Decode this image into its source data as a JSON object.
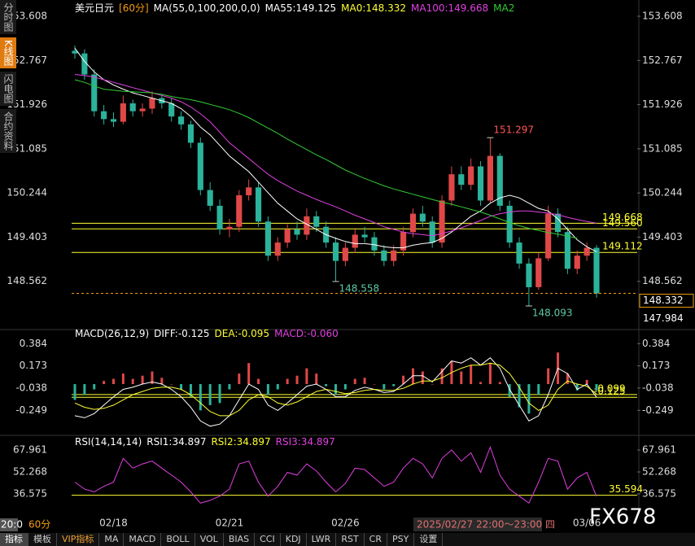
{
  "sidebar": [
    "分时图",
    "K线图",
    "闪电图",
    "合约资料"
  ],
  "clock": "20:0",
  "period": "60分",
  "crosshair_time": "2025/02/27 22:00～23:00 四",
  "watermark": "FX678",
  "toolbar": [
    "指标",
    "模板",
    "VIP指标",
    "MA",
    "MACD",
    "BOLL",
    "VOL",
    "BIAS",
    "CCI",
    "KDJ",
    "LWR",
    "RST",
    "CR",
    "PSY",
    "设置"
  ],
  "chart_data": [
    {
      "type": "candlestick",
      "legend": [
        {
          "text": "美元日元",
          "color": "#ffffff"
        },
        {
          "text": "[60分]",
          "color": "#f39c12"
        },
        {
          "text": "MA(55,0,100,200,0,0)",
          "color": "#ffffff"
        },
        {
          "text": "MA55:149.125",
          "color": "#ffffff"
        },
        {
          "text": "MA0:148.332",
          "color": "#ffff33"
        },
        {
          "text": "MA100:149.668",
          "color": "#e040e0"
        },
        {
          "text": "MA2",
          "color": "#33cc33"
        }
      ],
      "categories": [
        null,
        null,
        null,
        null,
        "02/18",
        null,
        null,
        null,
        null,
        null,
        null,
        null,
        null,
        null,
        null,
        null,
        "02/21",
        null,
        null,
        null,
        null,
        null,
        null,
        null,
        null,
        null,
        null,
        null,
        "02/26",
        null,
        null,
        null,
        null,
        null,
        null,
        null,
        null,
        null,
        null,
        null,
        null,
        null,
        null,
        null,
        null,
        null,
        null,
        null,
        null,
        null,
        null,
        null,
        null,
        "03/06",
        null
      ],
      "open": [
        152.95,
        152.9,
        152.5,
        151.8,
        151.65,
        151.6,
        151.95,
        151.8,
        151.85,
        152.05,
        151.95,
        151.7,
        151.55,
        151.2,
        150.3,
        150.0,
        149.55,
        149.6,
        150.2,
        150.35,
        149.7,
        149.05,
        149.3,
        149.55,
        149.45,
        149.8,
        149.6,
        149.3,
        148.95,
        149.2,
        149.45,
        149.4,
        149.15,
        148.95,
        149.15,
        149.5,
        149.85,
        149.7,
        149.3,
        150.1,
        150.6,
        150.4,
        150.75,
        150.1,
        150.95,
        150.0,
        149.3,
        148.9,
        148.45,
        149.0,
        149.85,
        149.5,
        148.8,
        149.05,
        149.2
      ],
      "high": [
        153.05,
        152.98,
        152.6,
        151.92,
        151.78,
        152.1,
        152.02,
        151.95,
        152.18,
        152.12,
        152.05,
        151.8,
        151.62,
        151.3,
        150.45,
        150.12,
        149.75,
        150.3,
        150.5,
        150.45,
        149.8,
        149.4,
        149.65,
        149.7,
        149.95,
        149.9,
        149.7,
        149.4,
        149.3,
        149.55,
        149.6,
        149.5,
        149.25,
        149.25,
        149.6,
        149.95,
        150.0,
        149.8,
        150.2,
        150.75,
        150.75,
        150.9,
        150.85,
        151.297,
        151.0,
        150.1,
        149.4,
        149.0,
        149.1,
        150.0,
        149.95,
        149.6,
        149.15,
        149.3,
        149.25
      ],
      "low": [
        152.8,
        152.4,
        151.7,
        151.55,
        151.5,
        151.55,
        151.7,
        151.7,
        151.75,
        151.85,
        151.6,
        151.45,
        151.1,
        150.2,
        149.9,
        149.45,
        149.4,
        149.5,
        150.1,
        149.6,
        148.95,
        148.95,
        149.2,
        149.35,
        149.35,
        149.5,
        149.2,
        148.558,
        148.85,
        149.1,
        149.3,
        149.05,
        148.85,
        148.85,
        149.05,
        149.4,
        149.6,
        149.2,
        149.2,
        150.0,
        150.3,
        150.3,
        150.0,
        150.05,
        149.9,
        149.2,
        148.8,
        148.093,
        148.4,
        148.95,
        149.4,
        148.7,
        148.7,
        148.95,
        148.25
      ],
      "close": [
        152.9,
        152.5,
        151.8,
        151.65,
        151.6,
        151.95,
        151.8,
        151.85,
        152.05,
        151.95,
        151.7,
        151.55,
        151.2,
        150.3,
        150.0,
        149.55,
        149.6,
        150.2,
        150.35,
        149.7,
        149.05,
        149.3,
        149.55,
        149.45,
        149.8,
        149.6,
        149.3,
        148.95,
        149.2,
        149.45,
        149.4,
        149.15,
        148.95,
        149.15,
        149.5,
        149.85,
        149.7,
        149.3,
        150.1,
        150.6,
        150.4,
        150.75,
        150.1,
        150.95,
        150.0,
        149.3,
        148.9,
        148.45,
        149.0,
        149.85,
        149.5,
        148.8,
        149.05,
        149.2,
        148.33
      ],
      "up_color": "#e04848",
      "down_color": "#2bb39b",
      "series": [
        {
          "color": "#ffffff",
          "values": [
            153.0,
            152.75,
            152.55,
            152.4,
            152.3,
            152.22,
            152.15,
            152.1,
            152.05,
            152.0,
            151.95,
            151.85,
            151.7,
            151.5,
            151.35,
            151.15,
            150.95,
            150.8,
            150.65,
            150.45,
            150.25,
            150.05,
            149.9,
            149.75,
            149.65,
            149.55,
            149.45,
            149.38,
            149.32,
            149.28,
            149.28,
            149.26,
            149.22,
            149.2,
            149.2,
            149.25,
            149.28,
            149.3,
            149.38,
            149.5,
            149.65,
            149.8,
            149.9,
            150.05,
            150.15,
            150.2,
            150.15,
            150.05,
            149.95,
            149.9,
            149.75,
            149.55,
            149.35,
            149.22,
            149.125
          ]
        },
        {
          "color": "#e040e0",
          "values": [
            152.5,
            152.48,
            152.45,
            152.4,
            152.35,
            152.3,
            152.25,
            152.2,
            152.15,
            152.1,
            152.05,
            151.98,
            151.88,
            151.75,
            151.6,
            151.4,
            151.2,
            151.05,
            150.9,
            150.75,
            150.6,
            150.48,
            150.38,
            150.28,
            150.2,
            150.12,
            150.05,
            149.98,
            149.9,
            149.82,
            149.75,
            149.68,
            149.6,
            149.55,
            149.5,
            149.47,
            149.45,
            149.43,
            149.47,
            149.52,
            149.58,
            149.65,
            149.72,
            149.8,
            149.85,
            149.88,
            149.9,
            149.9,
            149.88,
            149.86,
            149.83,
            149.78,
            149.74,
            149.7,
            149.668
          ]
        },
        {
          "color": "#33cc33",
          "values": [
            152.4,
            152.35,
            152.28,
            152.22,
            152.2,
            152.18,
            152.17,
            152.16,
            152.15,
            152.12,
            152.08,
            152.05,
            152.02,
            151.98,
            151.93,
            151.88,
            151.83,
            151.76,
            151.68,
            151.58,
            151.48,
            151.38,
            151.27,
            151.17,
            151.07,
            150.97,
            150.88,
            150.78,
            150.68,
            150.6,
            150.52,
            150.45,
            150.38,
            150.32,
            150.27,
            150.22,
            150.17,
            150.12,
            150.07,
            150.03,
            149.98,
            149.93,
            149.88,
            149.82,
            149.75,
            149.68,
            149.62,
            149.57,
            149.53,
            149.49,
            149.46,
            149.42,
            149.38,
            null,
            null
          ]
        }
      ],
      "ylim": [
        147.721,
        153.608
      ],
      "yticks": [
        153.608,
        152.767,
        151.926,
        151.085,
        150.244,
        149.403,
        148.562
      ],
      "hlines": [
        {
          "value": 149.668,
          "color": "#ffff33"
        },
        {
          "value": 149.56,
          "label": "149.560",
          "color": "#ffff33"
        },
        {
          "value": 149.112,
          "color": "#ffff33"
        }
      ],
      "annotations": [
        {
          "value": 151.297,
          "color": "#ff5555"
        },
        {
          "value": 148.558,
          "color": "#5fc9a8"
        },
        {
          "value": 148.093,
          "color": "#5fc9a8"
        }
      ],
      "last_price": 148.332,
      "last_price_color": "#f39c12",
      "price_tags": [
        148.332,
        147.984
      ]
    },
    {
      "type": "macd",
      "legend": [
        {
          "text": "MACD(26,12,9)",
          "color": "#ffffff"
        },
        {
          "text": "DIFF:-0.125",
          "color": "#ffffff"
        },
        {
          "text": "DEA:-0.095",
          "color": "#ffff33"
        },
        {
          "text": "MACD:-0.060",
          "color": "#e040e0"
        }
      ],
      "bars": [
        -0.15,
        -0.1,
        -0.05,
        0.03,
        0.05,
        0.1,
        0.05,
        0.08,
        0.12,
        0.06,
        0.0,
        -0.05,
        -0.12,
        -0.25,
        -0.2,
        -0.18,
        -0.05,
        0.1,
        0.2,
        0.05,
        -0.1,
        -0.05,
        0.05,
        0.08,
        0.15,
        0.1,
        -0.02,
        -0.1,
        -0.05,
        0.05,
        0.06,
        0.0,
        -0.05,
        -0.02,
        0.08,
        0.15,
        0.12,
        0.0,
        0.15,
        0.22,
        0.12,
        0.18,
        0.02,
        0.2,
        0.02,
        -0.12,
        -0.22,
        -0.28,
        -0.1,
        0.15,
        0.3,
        0.1,
        -0.06,
        0.04,
        -0.06
      ],
      "up_color": "#e04848",
      "down_color": "#2bb39b",
      "series": [
        {
          "color": "#ffffff",
          "values": [
            -0.3,
            -0.32,
            -0.28,
            -0.2,
            -0.12,
            -0.05,
            -0.03,
            0.0,
            0.02,
            0.0,
            -0.05,
            -0.12,
            -0.22,
            -0.35,
            -0.4,
            -0.38,
            -0.3,
            -0.15,
            0.0,
            -0.05,
            -0.2,
            -0.25,
            -0.18,
            -0.1,
            -0.02,
            0.0,
            -0.05,
            -0.12,
            -0.12,
            -0.06,
            -0.03,
            -0.05,
            -0.08,
            -0.07,
            0.0,
            0.08,
            0.08,
            0.02,
            0.12,
            0.22,
            0.2,
            0.25,
            0.18,
            0.25,
            0.15,
            -0.05,
            -0.2,
            -0.35,
            -0.3,
            -0.1,
            0.15,
            0.1,
            -0.05,
            0.0,
            -0.125
          ]
        },
        {
          "color": "#ffff33",
          "values": [
            -0.18,
            -0.22,
            -0.24,
            -0.23,
            -0.2,
            -0.15,
            -0.1,
            -0.07,
            -0.04,
            -0.03,
            -0.03,
            -0.05,
            -0.1,
            -0.18,
            -0.26,
            -0.3,
            -0.3,
            -0.25,
            -0.15,
            -0.1,
            -0.12,
            -0.18,
            -0.2,
            -0.17,
            -0.12,
            -0.07,
            -0.05,
            -0.07,
            -0.09,
            -0.08,
            -0.06,
            -0.05,
            -0.06,
            -0.06,
            -0.04,
            0.0,
            0.03,
            0.03,
            0.06,
            0.11,
            0.15,
            0.18,
            0.18,
            0.2,
            0.18,
            0.1,
            -0.03,
            -0.18,
            -0.25,
            -0.2,
            -0.05,
            0.03,
            0.0,
            -0.02,
            -0.095
          ]
        }
      ],
      "ylim": [
        -0.448,
        0.464
      ],
      "yticks": [
        0.384,
        0.173,
        -0.038,
        -0.249
      ],
      "hlines": [
        {
          "value": -0.099,
          "color": "#ffff33"
        },
        {
          "value": -0.125,
          "color": "#ffff33"
        }
      ]
    },
    {
      "type": "rsi",
      "legend": [
        {
          "text": "RSI(14,14,14)",
          "color": "#ffffff"
        },
        {
          "text": "RSI1:34.897",
          "color": "#ffffff"
        },
        {
          "text": "RSI2:34.897",
          "color": "#ffff33"
        },
        {
          "text": "RSI3:34.897",
          "color": "#e040e0"
        }
      ],
      "series": [
        {
          "color": "#e040e0",
          "values": [
            45,
            40,
            38,
            42,
            45,
            62,
            55,
            58,
            60,
            55,
            50,
            45,
            38,
            30,
            32,
            35,
            40,
            58,
            60,
            45,
            35,
            42,
            52,
            50,
            58,
            53,
            45,
            38,
            44,
            55,
            54,
            48,
            42,
            45,
            55,
            62,
            58,
            48,
            62,
            68,
            60,
            66,
            52,
            70,
            50,
            40,
            35,
            30,
            45,
            62,
            60,
            40,
            48,
            52,
            34.897
          ]
        }
      ],
      "ylim": [
        22.04,
        75.52
      ],
      "yticks": [
        67.961,
        52.268,
        36.575
      ],
      "hlines": [
        {
          "value": 35.594,
          "color": "#ffff33"
        }
      ]
    }
  ]
}
